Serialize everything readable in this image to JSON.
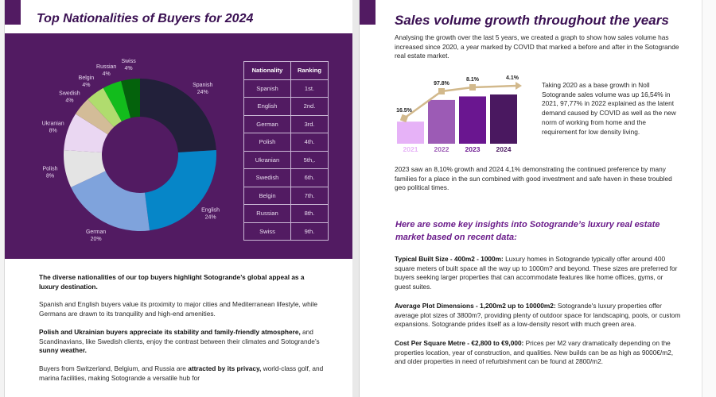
{
  "left_page": {
    "title": "Top Nationalities of Buyers for 2024",
    "table": {
      "headers": [
        "Nationality",
        "Ranking"
      ],
      "rows": [
        [
          "Spanish",
          "1st."
        ],
        [
          "English",
          "2nd."
        ],
        [
          "German",
          "3rd."
        ],
        [
          "Polish",
          "4th."
        ],
        [
          "Ukranian",
          "5th,."
        ],
        [
          "Swedish",
          "6th."
        ],
        [
          "Belgin",
          "7th."
        ],
        [
          "Russian",
          "8th."
        ],
        [
          "Swiss",
          "9th."
        ]
      ]
    },
    "text": {
      "p1_bold": "The diverse nationalities of our top buyers highlight Sotogrande’s global appeal as a luxury destination.",
      "p2": "Spanish and English buyers value its proximity to major cities and Mediterranean lifestyle, while Germans are drawn to its tranquility and high-end amenities.",
      "p3_bold": "Polish and Ukrainian buyers appreciate its stability and family-friendly atmosphere,",
      "p3_mid": " and Scandinavians, like Swedish clients, enjoy the contrast between their climates and Sotogrande’s ",
      "p3_bold2": "sunny weather.",
      "p4_start": "Buyers from Switzerland, Belgium, and Russia are ",
      "p4_bold": "attracted by its privacy,",
      "p4_end": " world-class golf, and marina facilities, making Sotogrande a versatile hub for"
    }
  },
  "right_page": {
    "title": "Sales volume growth throughout the years",
    "intro": "Analysing the growth over the last 5 years, we created a graph to show how sales volume has increased since 2020, a year marked by COVID that marked a before and after in the Sotogrande real estate market.",
    "side_text": "Taking 2020 as a base growth in Noll Sotogrande sales volume was up 16,54% in 2021, 97,77% in 2022 explained as the latent demand caused by COVID as well as the new norm of working from home and the requirement for low density living.",
    "growth_text": "2023 saw an 8,10% growth and 2024 4,1% demonstrating the continued preference by many families for a place in the sun combined with good investment and safe haven in these troubled geo political times.",
    "insights_title": "Here are some key insights into Sotogrande’s luxury real estate market based on recent data:",
    "insights": [
      {
        "label": "Typical Built Size - 400m2 - 1000m:",
        "text": " Luxury homes in Sotogrande typically offer around 400 square meters of built space all the way up to 1000m? and beyond. These sizes are preferred for buyers seeking larger properties that can accommodate features like home offices, gyms, or guest suites."
      },
      {
        "label": "Average Plot Dimensions - 1,200m2 up to 10000m2:",
        "text": " Sotogrande's luxury properties offer average plot sizes of 3800m?, providing plenty of outdoor space for landscaping, pools, or custom expansions. Sotogrande prides itself as a low-density resort with much green area."
      },
      {
        "label": "Cost Per Square Metre - €2,800 to €9,000:",
        "text": " Prices per M2 vary dramatically depending on the properties location, year of construction, and qualities. New builds can be as high as 9000€/m2, and older properties in need of refurbishment can be found at 2800/m2."
      }
    ]
  },
  "chart_data": [
    {
      "type": "pie",
      "title": "Top Nationalities of Buyers for 2024",
      "donut": true,
      "slices": [
        {
          "label": "Spanish",
          "value": 24,
          "display": "24%",
          "color": "#22203a"
        },
        {
          "label": "English",
          "value": 24,
          "display": "24%",
          "color": "#0686c8"
        },
        {
          "label": "German",
          "value": 20,
          "display": "20%",
          "color": "#7fa3dc"
        },
        {
          "label": "Polish",
          "value": 8,
          "display": "8%",
          "color": "#e4e4e4"
        },
        {
          "label": "Ukranian",
          "value": 8,
          "display": "8%",
          "color": "#ead7f2"
        },
        {
          "label": "Swedish",
          "value": 4,
          "display": "4%",
          "color": "#d3bc98"
        },
        {
          "label": "Belgin",
          "value": 4,
          "display": "4%",
          "color": "#b0dc6e"
        },
        {
          "label": "Russian",
          "value": 4,
          "display": "4%",
          "color": "#12bc1c"
        },
        {
          "label": "Swiss",
          "value": 4,
          "display": "4%",
          "color": "#04620c"
        }
      ]
    },
    {
      "type": "bar",
      "title": "Sales volume growth",
      "categories": [
        "2021",
        "2022",
        "2023",
        "2024"
      ],
      "bar_values": [
        116.5,
        230.4,
        249.1,
        259.3
      ],
      "bar_colors": [
        "#e6b2f7",
        "#9c5bb5",
        "#6a1690",
        "#4a1860"
      ],
      "label_colors": [
        "#e6b2f7",
        "#9c5bb5",
        "#6a1690",
        "#4a1860"
      ],
      "line_series": {
        "name": "Growth %",
        "values": [
          16.5,
          97.8,
          8.1,
          4.1
        ],
        "labels": [
          "16.5%",
          "97.8%",
          "8.1%",
          "4.1%"
        ],
        "color": "#d2b98c"
      }
    }
  ]
}
